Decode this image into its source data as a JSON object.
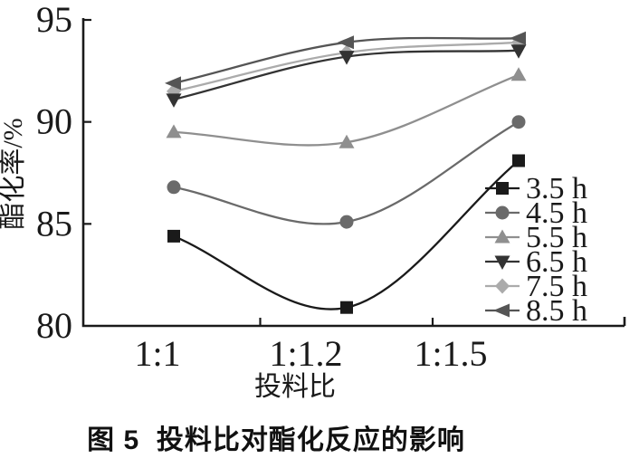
{
  "figure": {
    "caption": "图 5  投料比对酯化反应的影响"
  },
  "chart_data": {
    "type": "line",
    "title": "",
    "xlabel": "投料比",
    "ylabel": "酯化率/%",
    "categories": [
      "1:1",
      "1:1.2",
      "1:1.5"
    ],
    "y_ticks": [
      95,
      90,
      85,
      80
    ],
    "ylim": [
      80,
      95
    ],
    "grid": false,
    "legend_position": "inside-right",
    "axis_color": "#1a1a1a",
    "series": [
      {
        "name": "3.5 h",
        "marker": "square",
        "color": "#1a1a1a",
        "values": [
          84.4,
          80.9,
          88.1
        ]
      },
      {
        "name": "4.5 h",
        "marker": "circle",
        "color": "#6a6a6a",
        "values": [
          86.8,
          85.1,
          90.0
        ]
      },
      {
        "name": "5.5 h",
        "marker": "triangle-up",
        "color": "#8f8f8f",
        "values": [
          89.5,
          89.0,
          92.3
        ]
      },
      {
        "name": "6.5 h",
        "marker": "triangle-down",
        "color": "#333333",
        "values": [
          91.1,
          93.2,
          93.5
        ]
      },
      {
        "name": "7.5 h",
        "marker": "diamond",
        "color": "#ababab",
        "values": [
          91.5,
          93.4,
          93.9
        ]
      },
      {
        "name": "8.5 h",
        "marker": "arrow-left",
        "color": "#555555",
        "values": [
          91.9,
          93.9,
          94.1
        ]
      }
    ]
  }
}
